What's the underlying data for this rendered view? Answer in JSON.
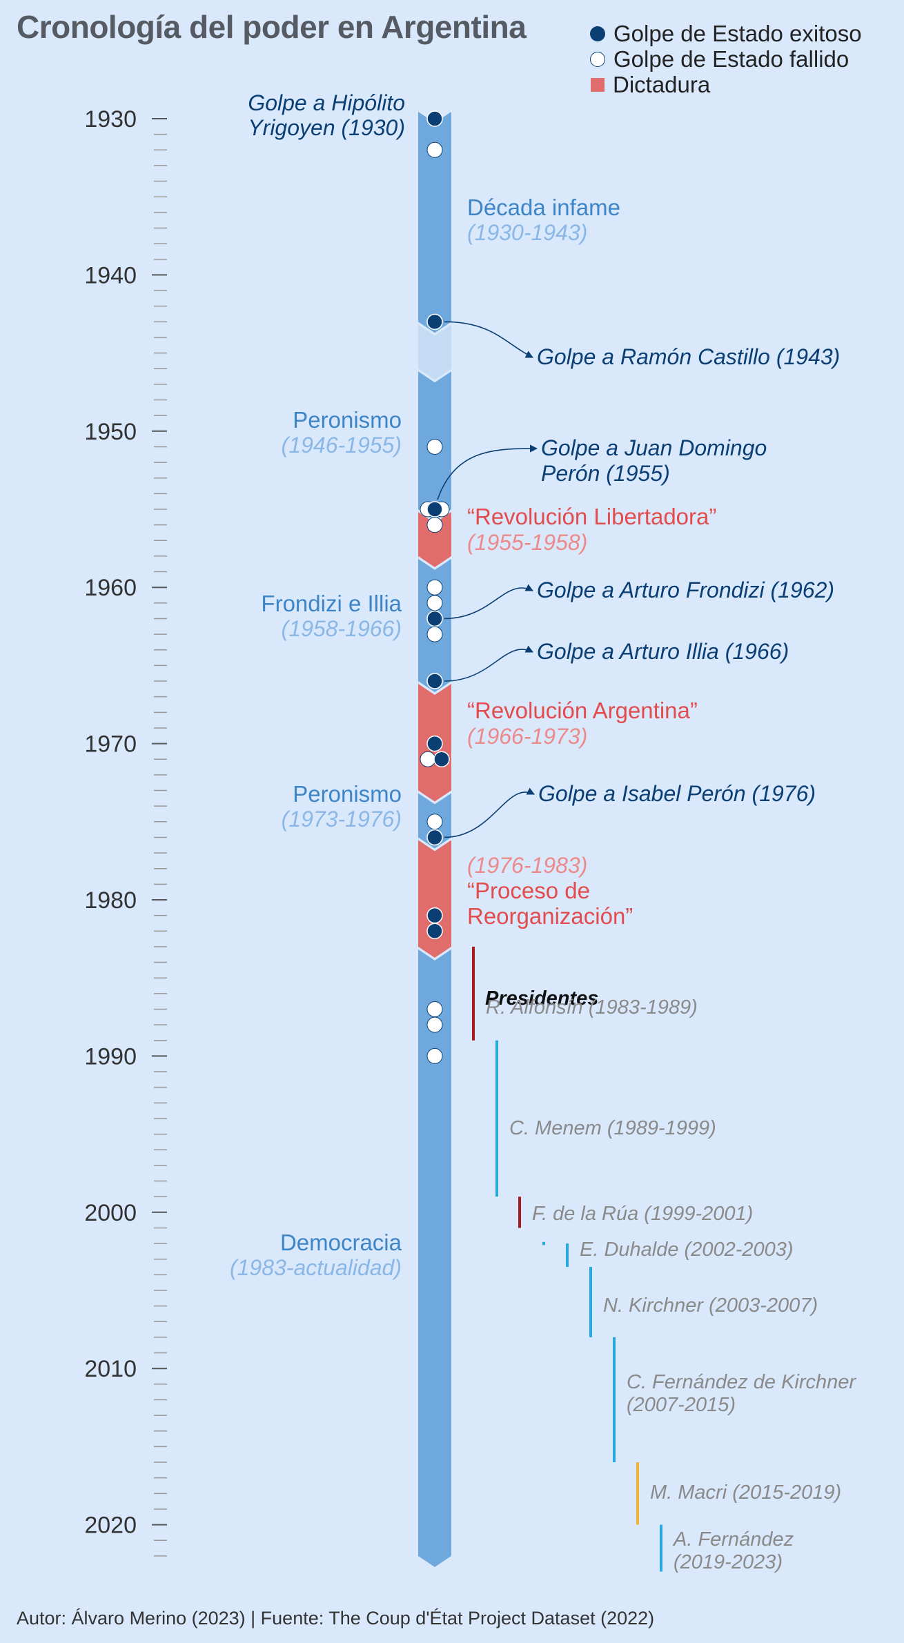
{
  "title": "Cronología del poder en Argentina",
  "footer": "Autor: Álvaro Merino (2023) | Fuente: The Coup d'État Project Dataset (2022)",
  "legend": {
    "successful": "Golpe de Estado exitoso",
    "failed": "Golpe de Estado fallido",
    "dictatorship": "Dictadura"
  },
  "colors": {
    "background": "#d9e8fb",
    "democracy_bar": "#6fa8dc",
    "dictatorship_bar": "#e06c6c",
    "gap_bar": "#c4dbf4",
    "successful_dot": "#0b3f74",
    "democracy_text": "#3d85c6",
    "democracy_range_text": "#8ab7e6",
    "dictatorship_text": "#e34c4c",
    "dictatorship_range_text": "#ec8a8a",
    "coup_text": "#0b3f74",
    "president_text": "#8a8a8a",
    "president_red": "#a61c1c",
    "president_cyan": "#29a8e0",
    "president_yellow": "#f1b434"
  },
  "chart_data": {
    "type": "timeline",
    "title": "Cronología del poder en Argentina",
    "axis": {
      "ticks": [
        1930,
        1940,
        1950,
        1960,
        1970,
        1980,
        1990,
        2000,
        2010,
        2020
      ],
      "minor_every_years": 1,
      "range": [
        1930,
        2022
      ]
    },
    "periods": [
      {
        "name": "Década infame",
        "range": "(1930-1943)",
        "start": 1930,
        "end": 1943,
        "kind": "democracy",
        "side": "right"
      },
      {
        "name": "Peronismo",
        "range": "(1946-1955)",
        "start": 1946,
        "end": 1955,
        "kind": "democracy",
        "side": "left"
      },
      {
        "name": "“Revolución Libertadora”",
        "range": "(1955-1958)",
        "start": 1955,
        "end": 1958,
        "kind": "dictatorship",
        "side": "right"
      },
      {
        "name": "Frondizi e Illia",
        "range": "(1958-1966)",
        "start": 1958,
        "end": 1966,
        "kind": "democracy",
        "side": "left"
      },
      {
        "name": "“Revolución Argentina”",
        "range": "(1966-1973)",
        "start": 1966,
        "end": 1973,
        "kind": "dictatorship",
        "side": "right"
      },
      {
        "name": "Peronismo",
        "range": "(1973-1976)",
        "start": 1973,
        "end": 1976,
        "kind": "democracy",
        "side": "left"
      },
      {
        "name": "“Proceso de Reorganización”",
        "range": "(1976-1983)",
        "start": 1976,
        "end": 1983,
        "kind": "dictatorship",
        "side": "right",
        "range_first": true
      },
      {
        "name": "Democracia",
        "range": "(1983-actualidad)",
        "start": 1983,
        "end": 2022,
        "kind": "democracy",
        "side": "left"
      }
    ],
    "gaps": [
      {
        "start": 1943,
        "end": 1946
      }
    ],
    "coups": [
      {
        "year": 1930,
        "status": "successful"
      },
      {
        "year": 1932,
        "status": "failed"
      },
      {
        "year": 1943,
        "status": "successful"
      },
      {
        "year": 1951,
        "status": "failed"
      },
      {
        "year": 1955,
        "status": "failed",
        "offset": -1
      },
      {
        "year": 1955,
        "status": "failed",
        "offset": 1
      },
      {
        "year": 1955,
        "status": "successful",
        "offset": 0
      },
      {
        "year": 1956,
        "status": "failed"
      },
      {
        "year": 1960,
        "status": "failed"
      },
      {
        "year": 1961,
        "status": "failed"
      },
      {
        "year": 1962,
        "status": "successful"
      },
      {
        "year": 1963,
        "status": "failed"
      },
      {
        "year": 1966,
        "status": "successful"
      },
      {
        "year": 1970,
        "status": "successful"
      },
      {
        "year": 1971,
        "status": "failed",
        "offset": -1
      },
      {
        "year": 1971,
        "status": "successful",
        "offset": 1
      },
      {
        "year": 1975,
        "status": "failed"
      },
      {
        "year": 1976,
        "status": "successful"
      },
      {
        "year": 1981,
        "status": "successful"
      },
      {
        "year": 1982,
        "status": "successful"
      },
      {
        "year": 1987,
        "status": "failed"
      },
      {
        "year": 1988,
        "status": "failed"
      },
      {
        "year": 1990,
        "status": "failed"
      }
    ],
    "coup_annotations": [
      {
        "lines": [
          "Golpe a Hipólito",
          "Yrigoyen (1930)"
        ],
        "year": 1930,
        "side": "left"
      },
      {
        "lines": [
          "Golpe a Ramón Castillo (1943)"
        ],
        "year": 1943,
        "side": "right",
        "arrow": true
      },
      {
        "lines": [
          "Golpe a Juan Domingo",
          "Perón (1955)"
        ],
        "year": 1955,
        "side": "right",
        "arrow": true
      },
      {
        "lines": [
          "Golpe a Arturo Frondizi (1962)"
        ],
        "year": 1962,
        "side": "right",
        "arrow": true
      },
      {
        "lines": [
          "Golpe a Arturo Illia (1966)"
        ],
        "year": 1966,
        "side": "right",
        "arrow": true
      },
      {
        "lines": [
          "Golpe a Isabel Perón (1976)"
        ],
        "year": 1976,
        "side": "right",
        "arrow": true
      }
    ],
    "presidents_header": "Presidentes",
    "presidents": [
      {
        "lines": [
          "R. Alfonsín (1983-1989)"
        ],
        "start": 1983,
        "end": 1989,
        "color": "red"
      },
      {
        "lines": [
          "C. Menem (1989-1999)"
        ],
        "start": 1989,
        "end": 1999,
        "color": "cyan"
      },
      {
        "lines": [
          "F. de la Rúa (1999-2001)"
        ],
        "start": 1999,
        "end": 2001,
        "color": "red"
      },
      {
        "lines": [],
        "start": 2001.9,
        "end": 2002.1,
        "color": "cyan"
      },
      {
        "lines": [
          "E. Duhalde (2002-2003)"
        ],
        "start": 2002,
        "end": 2003.5,
        "color": "cyan"
      },
      {
        "lines": [
          "N. Kirchner (2003-2007)"
        ],
        "start": 2003.5,
        "end": 2008,
        "color": "cyan"
      },
      {
        "lines": [
          "C. Fernández de Kirchner",
          "(2007-2015)"
        ],
        "start": 2008,
        "end": 2016,
        "color": "cyan"
      },
      {
        "lines": [
          "M. Macri (2015-2019)"
        ],
        "start": 2016,
        "end": 2020,
        "color": "yellow"
      },
      {
        "lines": [
          "A. Fernández",
          "(2019-2023)"
        ],
        "start": 2020,
        "end": 2023,
        "color": "cyan"
      }
    ]
  }
}
